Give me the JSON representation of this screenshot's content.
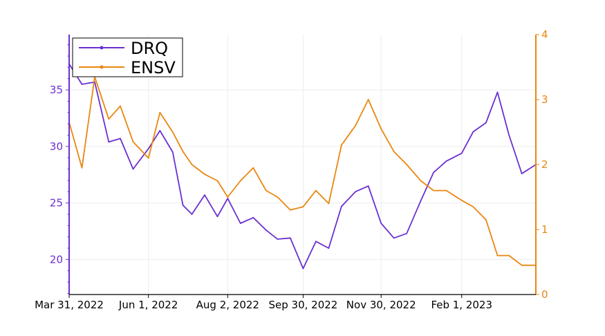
{
  "chart_data": {
    "type": "line",
    "title": "",
    "xlabel": "",
    "ylabel_left": "",
    "ylabel_right": "",
    "x_ticks": [
      "Mar 31, 2022",
      "Jun 1, 2022",
      "Aug 2, 2022",
      "Sep 30, 2022",
      "Nov 30, 2022",
      "Feb 1, 2023"
    ],
    "y_left": {
      "range": [
        16.9,
        39.9
      ],
      "ticks": [
        20,
        25,
        30,
        35
      ],
      "color": "#6a2fd1"
    },
    "y_right": {
      "range": [
        0,
        4
      ],
      "ticks": [
        0,
        1,
        2,
        3,
        4
      ],
      "color": "#e9860f"
    },
    "grid": true,
    "legend_placement": "top-left",
    "series": [
      {
        "name": "DRQ",
        "axis": "left",
        "color": "#6a2fd1",
        "x": [
          "2022-03-31",
          "2022-04-10",
          "2022-04-20",
          "2022-05-01",
          "2022-05-10",
          "2022-05-20",
          "2022-06-01",
          "2022-06-10",
          "2022-06-20",
          "2022-06-28",
          "2022-07-05",
          "2022-07-15",
          "2022-07-25",
          "2022-08-02",
          "2022-08-12",
          "2022-08-22",
          "2022-09-01",
          "2022-09-10",
          "2022-09-20",
          "2022-09-30",
          "2022-10-10",
          "2022-10-20",
          "2022-10-30",
          "2022-11-10",
          "2022-11-20",
          "2022-11-30",
          "2022-12-10",
          "2022-12-20",
          "2022-12-31",
          "2023-01-10",
          "2023-01-20",
          "2023-02-01",
          "2023-02-10",
          "2023-02-20",
          "2023-03-01",
          "2023-03-10",
          "2023-03-20",
          "2023-03-31"
        ],
        "values": [
          37.3,
          35.5,
          35.7,
          30.4,
          30.7,
          28.0,
          29.8,
          31.4,
          29.5,
          24.8,
          24.0,
          25.7,
          23.8,
          25.4,
          23.2,
          23.7,
          22.6,
          21.8,
          21.9,
          19.2,
          21.6,
          21.0,
          24.7,
          26.0,
          26.5,
          23.2,
          21.9,
          22.3,
          25.2,
          27.7,
          28.7,
          29.4,
          31.3,
          32.1,
          34.8,
          31.0,
          27.6,
          28.4
        ]
      },
      {
        "name": "ENSV",
        "axis": "right",
        "color": "#e9860f",
        "x": [
          "2022-03-31",
          "2022-04-10",
          "2022-04-20",
          "2022-05-01",
          "2022-05-10",
          "2022-05-20",
          "2022-06-01",
          "2022-06-10",
          "2022-06-20",
          "2022-06-28",
          "2022-07-05",
          "2022-07-15",
          "2022-07-25",
          "2022-08-02",
          "2022-08-12",
          "2022-08-22",
          "2022-09-01",
          "2022-09-10",
          "2022-09-20",
          "2022-09-30",
          "2022-10-10",
          "2022-10-20",
          "2022-10-30",
          "2022-11-10",
          "2022-11-20",
          "2022-11-30",
          "2022-12-10",
          "2022-12-20",
          "2022-12-31",
          "2023-01-10",
          "2023-01-20",
          "2023-02-01",
          "2023-02-10",
          "2023-02-20",
          "2023-03-01",
          "2023-03-10",
          "2023-03-20",
          "2023-03-31"
        ],
        "values": [
          2.65,
          1.95,
          3.35,
          2.7,
          2.9,
          2.35,
          2.1,
          2.8,
          2.5,
          2.2,
          2.0,
          1.85,
          1.75,
          1.5,
          1.75,
          1.95,
          1.6,
          1.5,
          1.3,
          1.35,
          1.6,
          1.4,
          2.3,
          2.6,
          3.0,
          2.55,
          2.2,
          2.0,
          1.75,
          1.6,
          1.6,
          1.45,
          1.35,
          1.15,
          0.6,
          0.6,
          0.45,
          0.45
        ]
      }
    ]
  }
}
